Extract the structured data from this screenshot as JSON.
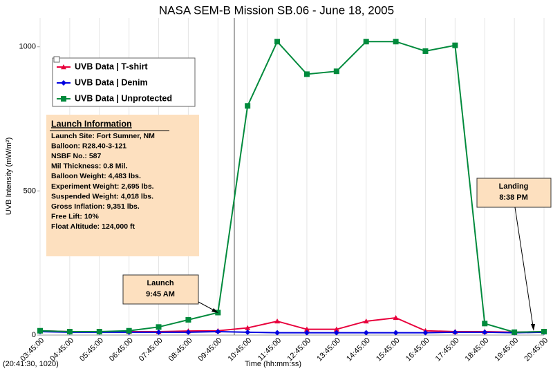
{
  "chart_data": {
    "type": "line",
    "title": "NASA SEM-B Mission SB.06 - June 18, 2005",
    "xlabel": "Time (hh:mm:ss)",
    "ylabel": "UVB Intensity (mW/m²)",
    "status": "(20:41:30, 1020)",
    "categories": [
      "03:45:00",
      "04:45:00",
      "05:45:00",
      "06:45:00",
      "07:45:00",
      "08:45:00",
      "09:45:00",
      "10:45:00",
      "11:45:00",
      "12:45:00",
      "13:45:00",
      "14:45:00",
      "15:45:00",
      "16:45:00",
      "17:45:00",
      "18:45:00",
      "19:45:00",
      "20:45:00"
    ],
    "series": [
      {
        "name": "UVB Data | T-shirt",
        "color": "#e8003c",
        "marker": "triangle",
        "values": [
          15,
          12,
          12,
          12,
          12,
          14,
          15,
          25,
          48,
          20,
          20,
          48,
          60,
          15,
          12,
          12,
          10,
          12
        ]
      },
      {
        "name": "UVB Data | Denim",
        "color": "#0000e0",
        "marker": "diamond",
        "values": [
          12,
          10,
          10,
          10,
          10,
          10,
          12,
          10,
          8,
          8,
          8,
          8,
          8,
          8,
          10,
          10,
          8,
          10
        ]
      },
      {
        "name": "UVB Data | Unprotected",
        "color": "#008a3c",
        "marker": "square",
        "values": [
          15,
          12,
          12,
          15,
          28,
          53,
          78,
          795,
          1018,
          905,
          915,
          1018,
          1018,
          985,
          1005,
          40,
          10,
          12
        ]
      }
    ],
    "ylim": [
      0,
      1100
    ],
    "yticks": [
      0,
      500,
      1000
    ],
    "grid": true,
    "info": {
      "title": "Launch Information",
      "lines": [
        "Launch Site:  Fort Sumner, NM",
        "Balloon:  R28.40-3-121",
        "NSBF No.:  587",
        "Mil Thickness: 0.8  Mil.",
        "Balloon Weight:  4,483 lbs.",
        "Experiment Weight:  2,695 lbs.",
        "Suspended Weight:  4,018 lbs.",
        "Gross Inflation:  9,351 lbs.",
        "Free Lift:  10%",
        "Float Altitude: 124,000 ft"
      ]
    },
    "launch": [
      "Launch",
      "9:45 AM"
    ],
    "landing": [
      "Landing",
      "8:38 PM"
    ]
  }
}
